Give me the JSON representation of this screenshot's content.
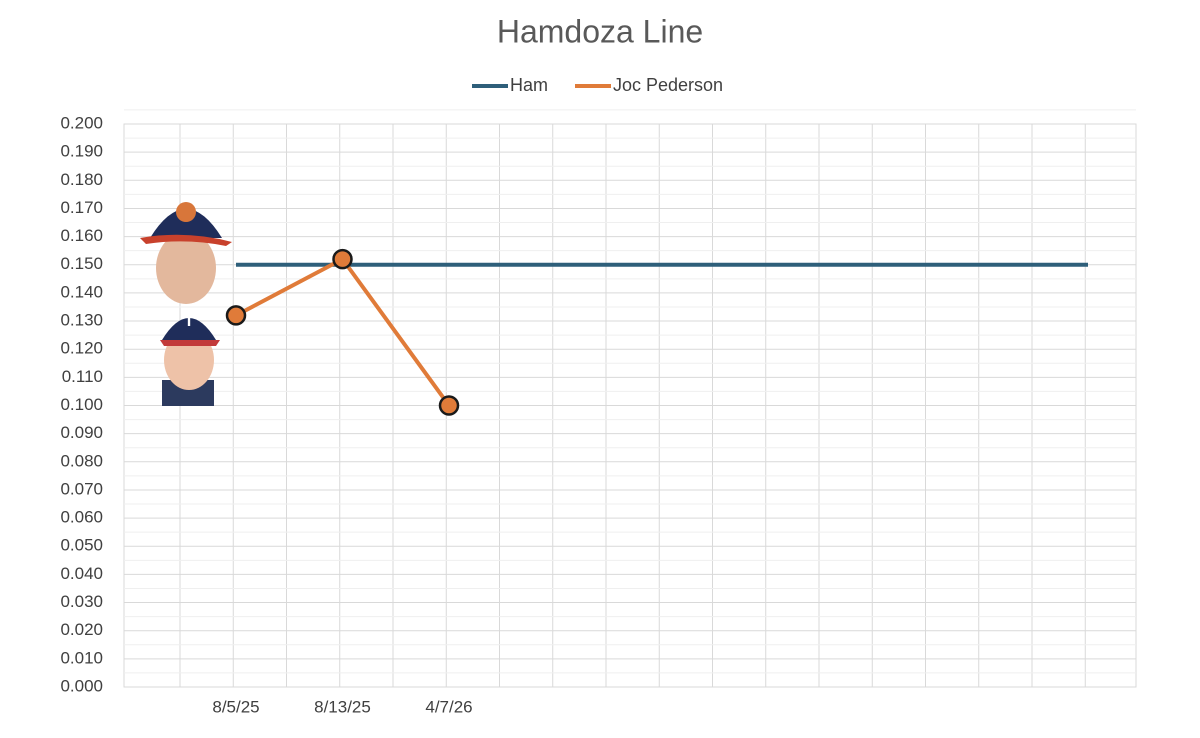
{
  "chart_data": {
    "type": "line",
    "title": "Hamdoza Line",
    "categories": [
      "8/5/25",
      "8/13/25",
      "4/7/26",
      null,
      null,
      null,
      null,
      null,
      null
    ],
    "series": [
      {
        "name": "Ham",
        "color": "#2e5f7a",
        "values": [
          0.15,
          0.15,
          0.15,
          0.15,
          0.15,
          0.15,
          0.15,
          0.15,
          0.15
        ]
      },
      {
        "name": "Joc Pederson",
        "color": "#e07b39",
        "values": [
          0.132,
          0.152,
          0.1,
          null,
          null,
          null,
          null,
          null,
          null
        ]
      }
    ],
    "ylim": [
      0,
      0.2
    ],
    "yticks": [
      {
        "value": 0,
        "label": "0.000"
      },
      {
        "value": 0.01,
        "label": "0.010"
      },
      {
        "value": 0.02,
        "label": "0.020"
      },
      {
        "value": 0.03,
        "label": "0.030"
      },
      {
        "value": 0.04,
        "label": "0.040"
      },
      {
        "value": 0.05,
        "label": "0.050"
      },
      {
        "value": 0.06,
        "label": "0.060"
      },
      {
        "value": 0.07,
        "label": "0.070"
      },
      {
        "value": 0.08,
        "label": "0.080"
      },
      {
        "value": 0.09,
        "label": "0.090"
      },
      {
        "value": 0.1,
        "label": "0.100"
      },
      {
        "value": 0.11,
        "label": "0.110"
      },
      {
        "value": 0.12,
        "label": "0.120"
      },
      {
        "value": 0.13,
        "label": "0.130"
      },
      {
        "value": 0.14,
        "label": "0.140"
      },
      {
        "value": 0.15,
        "label": "0.150"
      },
      {
        "value": 0.16,
        "label": "0.160"
      },
      {
        "value": 0.17,
        "label": "0.170"
      },
      {
        "value": 0.18,
        "label": "0.180"
      },
      {
        "value": 0.19,
        "label": "0.190"
      },
      {
        "value": 0.2,
        "label": "0.200"
      }
    ],
    "grid": true
  }
}
